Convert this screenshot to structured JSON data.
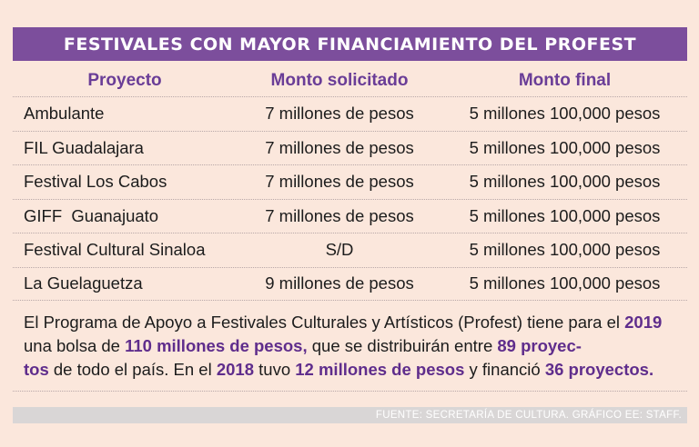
{
  "title": "FESTIVALES CON MAYOR FINANCIAMIENTO DEL PROFEST",
  "columns": [
    "Proyecto",
    "Monto solicitado",
    "Monto final"
  ],
  "rows": [
    {
      "proyecto": "Ambulante",
      "solicitado": "7 millones de pesos",
      "final": "5 millones 100,000 pesos"
    },
    {
      "proyecto": "FIL Guadalajara",
      "solicitado": "7 millones de pesos",
      "final": "5 millones 100,000 pesos"
    },
    {
      "proyecto": "Festival Los Cabos",
      "solicitado": "7 millones de pesos",
      "final": "5 millones 100,000 pesos"
    },
    {
      "proyecto": "GIFF  Guanajuato",
      "solicitado": "7 millones de pesos",
      "final": "5 millones 100,000 pesos"
    },
    {
      "proyecto": "Festival Cultural Sinaloa",
      "solicitado": "S/D",
      "final": "5 millones 100,000 pesos"
    },
    {
      "proyecto": "La Guelaguetza",
      "solicitado": "9 millones de pesos",
      "final": "5 millones 100,000 pesos"
    }
  ],
  "note": {
    "t1": "El Programa de Apoyo a Festivales Culturales y Artísticos (Profest) tiene para el ",
    "b1": "2019",
    "t2": " una bolsa de ",
    "b2": "110 millones de pesos,",
    "t3": " que se distribuirán entre ",
    "b3a": "89 proyec-",
    "b3b": "tos",
    "t4": " de todo el país. En el ",
    "b4": "2018",
    "t5": " tuvo ",
    "b5": "12 millones de pesos",
    "t6": " y financió ",
    "b6": "36 proyectos."
  },
  "source": "FUENTE: SECRETARÍA DE CULTURA. GRÁFICO EE: STAFF.",
  "colors": {
    "background": "#fbe7dc",
    "title_bar": "#7c4e9c",
    "accent_text": "#6a3d97",
    "source_bar": "#d9d6d6"
  }
}
